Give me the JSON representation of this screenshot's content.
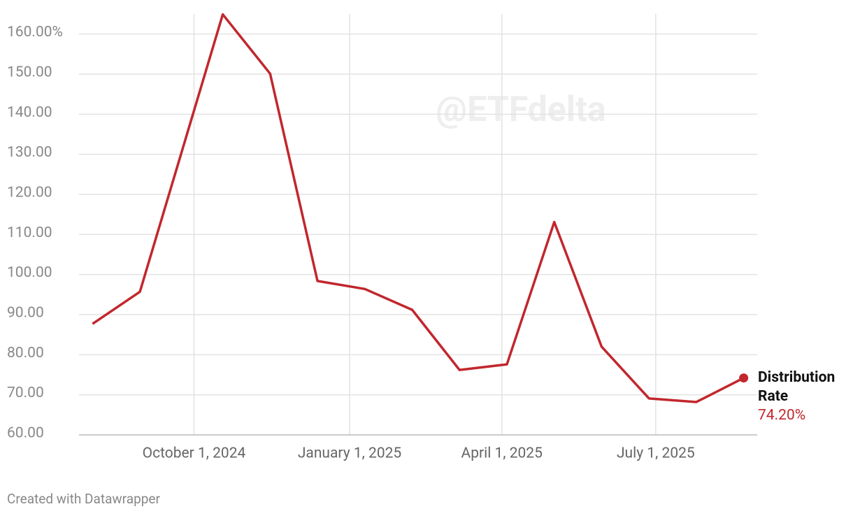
{
  "chart_data": {
    "type": "line",
    "watermark": "@ETFdelta",
    "footer": "Created with Datawrapper",
    "x": [
      "2024-08-02",
      "2024-08-30",
      "2024-10-18",
      "2024-11-15",
      "2024-12-13",
      "2025-01-10",
      "2025-02-07",
      "2025-03-07",
      "2025-04-04",
      "2025-05-02",
      "2025-05-30",
      "2025-06-27",
      "2025-07-25",
      "2025-08-22"
    ],
    "series": [
      {
        "name": "Distribution Rate",
        "color": "#c1272d",
        "values": [
          87.7,
          95.7,
          164.9,
          150.1,
          98.4,
          96.4,
          91.2,
          76.2,
          77.6,
          113.1,
          82.0,
          69.1,
          68.2,
          74.2
        ],
        "end_value_label": "74.20%"
      }
    ],
    "xlim": [
      "2024-07-25",
      "2025-08-30"
    ],
    "xticks": [
      {
        "value": "2024-10-01",
        "label": "October 1, 2024"
      },
      {
        "value": "2025-01-01",
        "label": "January 1, 2025"
      },
      {
        "value": "2025-04-01",
        "label": "April 1, 2025"
      },
      {
        "value": "2025-07-01",
        "label": "July 1, 2025"
      }
    ],
    "ylim": [
      60,
      165
    ],
    "yticks": [
      {
        "value": 60,
        "label": "60.00"
      },
      {
        "value": 70,
        "label": "70.00"
      },
      {
        "value": 80,
        "label": "80.00"
      },
      {
        "value": 90,
        "label": "90.00"
      },
      {
        "value": 100,
        "label": "100.00"
      },
      {
        "value": 110,
        "label": "110.00"
      },
      {
        "value": 120,
        "label": "120.00"
      },
      {
        "value": 130,
        "label": "130.00"
      },
      {
        "value": 140,
        "label": "140.00"
      },
      {
        "value": 150,
        "label": "150.00"
      },
      {
        "value": 160,
        "label": "160.00%"
      }
    ],
    "grid": true
  }
}
